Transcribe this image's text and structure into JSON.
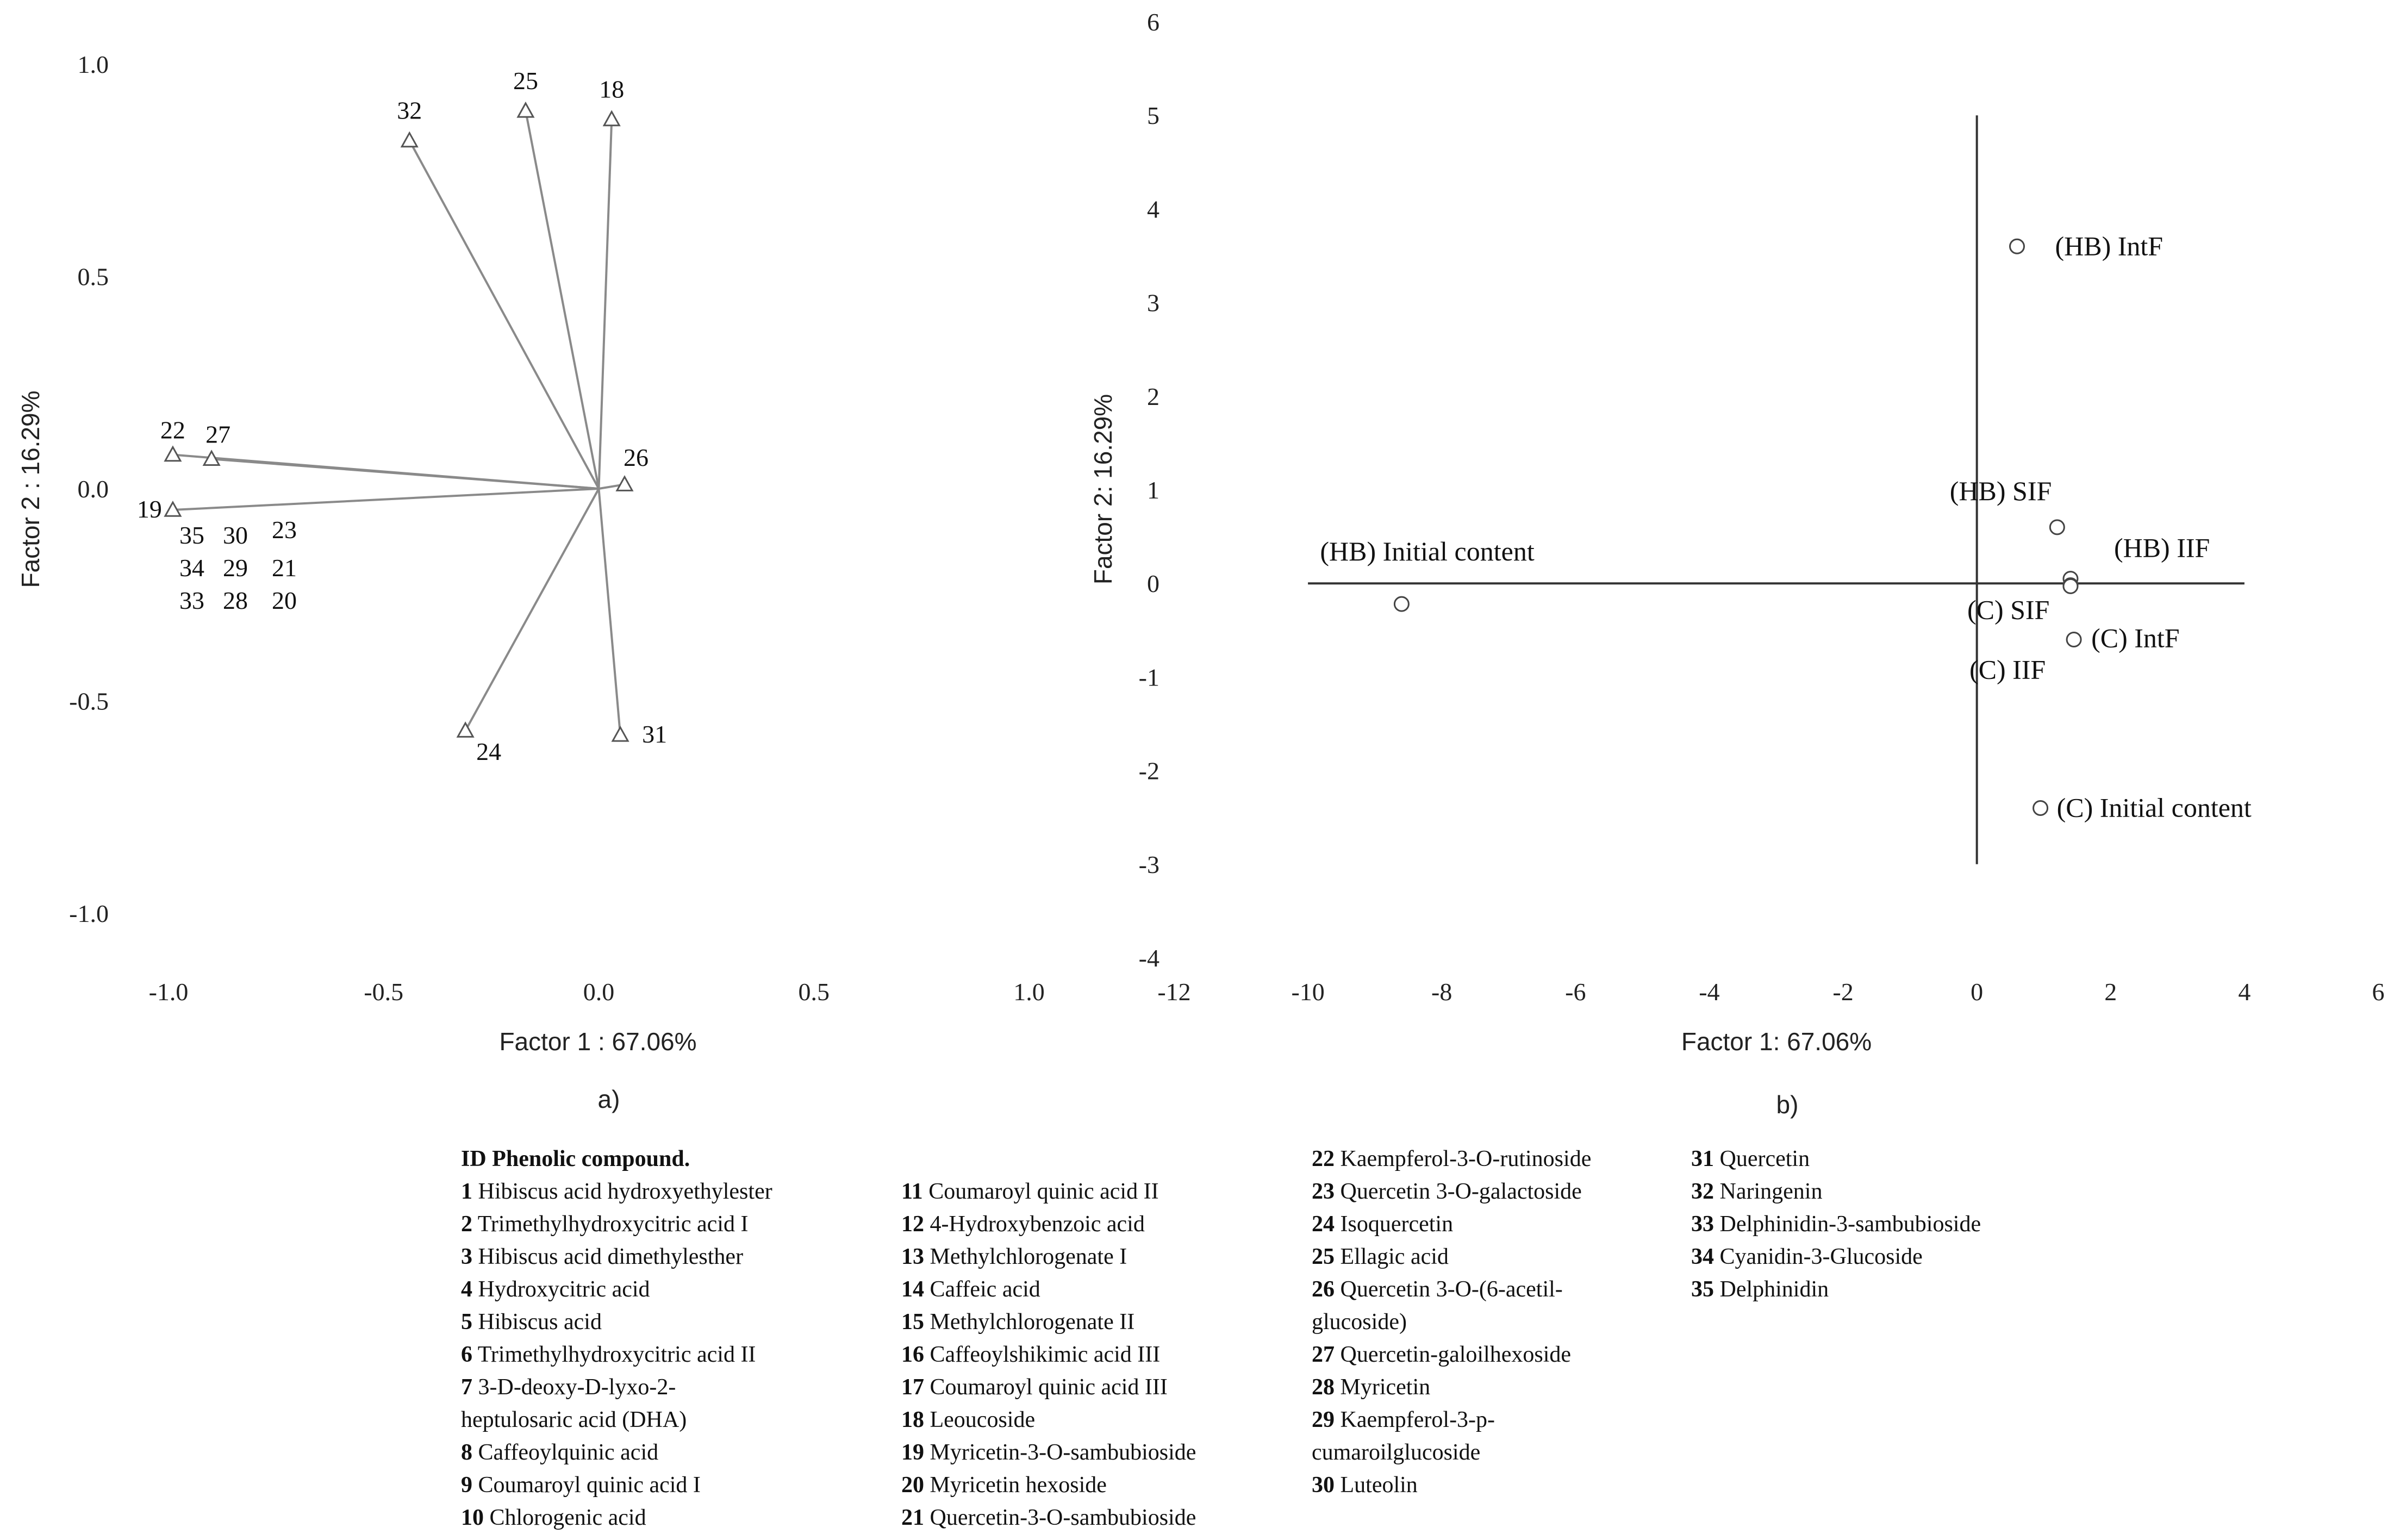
{
  "chart_data": [
    {
      "type": "scatter",
      "panel_label": "a)",
      "xlabel": "Factor 1 : 67.06%",
      "ylabel": "Factor 2 : 16.29%",
      "xlim": [
        -1.0,
        1.0
      ],
      "ylim": [
        -1.0,
        1.0
      ],
      "xticks": [
        "-1.0",
        "-0.5",
        "0.0",
        "0.5",
        "1.0"
      ],
      "yticks": [
        "1.0",
        "0.5",
        "0.0",
        "-0.5",
        "-1.0"
      ],
      "vectors": [
        {
          "id": "32",
          "x": -0.44,
          "y": 0.82
        },
        {
          "id": "25",
          "x": -0.17,
          "y": 0.89
        },
        {
          "id": "18",
          "x": 0.03,
          "y": 0.87
        },
        {
          "id": "22",
          "x": -0.99,
          "y": 0.08
        },
        {
          "id": "27",
          "x": -0.9,
          "y": 0.07
        },
        {
          "id": "26",
          "x": 0.06,
          "y": 0.01
        },
        {
          "id": "19",
          "x": -0.99,
          "y": -0.05
        },
        {
          "id": "24",
          "x": -0.31,
          "y": -0.57
        },
        {
          "id": "31",
          "x": 0.05,
          "y": -0.58
        }
      ],
      "label_groups": [
        [
          "35",
          "30",
          "23"
        ],
        [
          "34",
          "29",
          "21"
        ],
        [
          "33",
          "28",
          "20"
        ]
      ]
    },
    {
      "type": "scatter",
      "panel_label": "b)",
      "xlabel": "Factor 1: 67.06%",
      "ylabel": "Factor 2: 16.29%",
      "xlim": [
        -12,
        6
      ],
      "ylim": [
        -4,
        6
      ],
      "xticks": [
        "-12",
        "-10",
        "-8",
        "-6",
        "-4",
        "-2",
        "0",
        "2",
        "4",
        "6"
      ],
      "yticks": [
        "6",
        "5",
        "4",
        "3",
        "2",
        "1",
        "0",
        "-1",
        "-2",
        "-3",
        "-4"
      ],
      "points": [
        {
          "label": "(HB) IntF",
          "x": 0.6,
          "y": 3.6
        },
        {
          "label": "(HB) SIF",
          "x": 1.2,
          "y": 0.6
        },
        {
          "label": "(HB) IIF",
          "x": 1.4,
          "y": 0.05
        },
        {
          "label": "(HB) Initial content",
          "x": -8.6,
          "y": -0.22
        },
        {
          "label": "(C) SIF",
          "x": 1.4,
          "y": -0.02
        },
        {
          "label": "(C) IntF",
          "x": 1.45,
          "y": -0.6
        },
        {
          "label": "(C) IIF",
          "x": 1.4,
          "y": -0.03
        },
        {
          "label": "(C) Initial content",
          "x": 0.95,
          "y": -2.4
        }
      ]
    }
  ],
  "legend": {
    "header": "ID Phenolic compound.",
    "columns": [
      [
        {
          "id": "1",
          "name": "Hibiscus acid hydroxyethylester"
        },
        {
          "id": "2",
          "name": "Trimethylhydroxycitric acid I"
        },
        {
          "id": "3",
          "name": "Hibiscus acid dimethylesther"
        },
        {
          "id": "4",
          "name": "Hydroxycitric acid"
        },
        {
          "id": "5",
          "name": "Hibiscus acid"
        },
        {
          "id": "6",
          "name": "Trimethylhydroxycitric acid II"
        },
        {
          "id": "7",
          "name": "3-D-deoxy-D-lyxo-2-",
          "cont": "heptulosaric acid (DHA)"
        },
        {
          "id": "8",
          "name": "Caffeoylquinic acid"
        },
        {
          "id": "9",
          "name": "Coumaroyl quinic acid I"
        },
        {
          "id": "10",
          "name": "Chlorogenic acid"
        }
      ],
      [
        {
          "id": "11",
          "name": "Coumaroyl quinic acid II"
        },
        {
          "id": "12",
          "name": "4-Hydroxybenzoic acid"
        },
        {
          "id": "13",
          "name": "Methylchlorogenate I"
        },
        {
          "id": "14",
          "name": "Caffeic acid"
        },
        {
          "id": "15",
          "name": "Methylchlorogenate II"
        },
        {
          "id": "16",
          "name": "Caffeoylshikimic acid III"
        },
        {
          "id": "17",
          "name": "Coumaroyl quinic acid III"
        },
        {
          "id": "18",
          "name": "Leoucoside"
        },
        {
          "id": "19",
          "name": "Myricetin-3-O-sambubioside"
        },
        {
          "id": "20",
          "name": "Myricetin hexoside"
        },
        {
          "id": "21",
          "name": "Quercetin-3-O-sambubioside"
        }
      ],
      [
        {
          "id": "22",
          "name": "Kaempferol-3-O-rutinoside"
        },
        {
          "id": "23",
          "name": "Quercetin 3-O-galactoside"
        },
        {
          "id": "24",
          "name": "Isoquercetin"
        },
        {
          "id": "25",
          "name": "Ellagic acid"
        },
        {
          "id": "26",
          "name": "Quercetin 3-O-(6-acetil-",
          "cont": "glucoside)"
        },
        {
          "id": "27",
          "name": "Quercetin-galoilhexoside"
        },
        {
          "id": "28",
          "name": "Myricetin"
        },
        {
          "id": "29",
          "name": "Kaempferol-3-p-",
          "cont": "cumaroilglucoside"
        },
        {
          "id": "30",
          "name": "Luteolin"
        }
      ],
      [
        {
          "id": "31",
          "name": "Quercetin"
        },
        {
          "id": "32",
          "name": "Naringenin"
        },
        {
          "id": "33",
          "name": "Delphinidin-3-sambubioside"
        },
        {
          "id": "34",
          "name": "Cyanidin-3-Glucoside"
        },
        {
          "id": "35",
          "name": "Delphinidin"
        }
      ]
    ]
  }
}
